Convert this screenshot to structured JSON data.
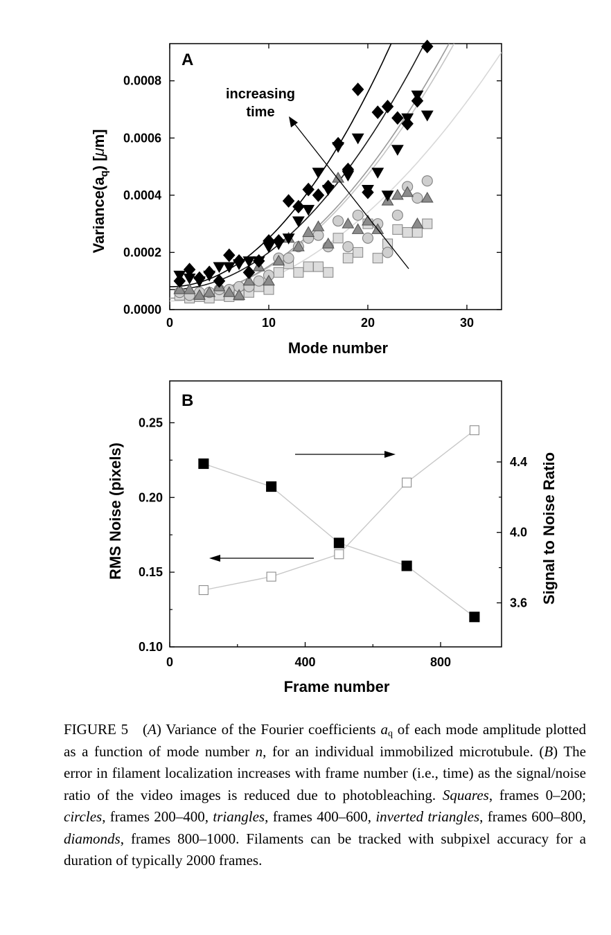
{
  "chart_data": [
    {
      "panel": "A",
      "type": "scatter",
      "xlabel": "Mode number",
      "ylabel": "Variance(a_q) [μm]",
      "ylabel_parts": {
        "pre": "Variance(a",
        "sub": "q",
        "post": ") [",
        "mu": "μ",
        "unit": "m]"
      },
      "xlim": [
        0,
        33.5
      ],
      "ylim": [
        0,
        0.00093
      ],
      "x_ticks": [
        0,
        10,
        20,
        30
      ],
      "x_tick_labels": [
        "0",
        "10",
        "20",
        "30"
      ],
      "y_ticks": [
        0,
        0.0002,
        0.0004,
        0.0006,
        0.0008
      ],
      "y_tick_labels": [
        "0.0000",
        "0.0002",
        "0.0004",
        "0.0006",
        "0.0008"
      ],
      "annotation": {
        "line1": "increasing",
        "line2": "time"
      },
      "series": [
        {
          "marker": "square",
          "fill": "#dcdcdc",
          "stroke": "#8c8c8c",
          "points": [
            [
              1,
              5e-05
            ],
            [
              2,
              4e-05
            ],
            [
              3,
              4.5e-05
            ],
            [
              4,
              4e-05
            ],
            [
              5,
              5e-05
            ],
            [
              6,
              4.5e-05
            ],
            [
              7,
              5e-05
            ],
            [
              8,
              6e-05
            ],
            [
              9,
              8e-05
            ],
            [
              10,
              7e-05
            ],
            [
              11,
              0.00013
            ],
            [
              12,
              0.00016
            ],
            [
              13,
              0.00013
            ],
            [
              14,
              0.00015
            ],
            [
              15,
              0.00015
            ],
            [
              16,
              0.00013
            ],
            [
              17,
              0.00025
            ],
            [
              18,
              0.00018
            ],
            [
              19,
              0.0002
            ],
            [
              20,
              0.0003
            ],
            [
              21,
              0.00018
            ],
            [
              22,
              0.00023
            ],
            [
              23,
              0.00028
            ],
            [
              24,
              0.00027
            ],
            [
              25,
              0.00027
            ],
            [
              26,
              0.0003
            ]
          ],
          "fit": {
            "a": 3e-05,
            "b": 7.75e-07,
            "p": 2
          },
          "fit_color": "#d8d8d8"
        },
        {
          "marker": "circle",
          "fill": "#cfcfcf",
          "stroke": "#808080",
          "points": [
            [
              1,
              6e-05
            ],
            [
              2,
              5e-05
            ],
            [
              3,
              6e-05
            ],
            [
              4,
              6e-05
            ],
            [
              5,
              7e-05
            ],
            [
              6,
              7e-05
            ],
            [
              7,
              8e-05
            ],
            [
              8,
              8e-05
            ],
            [
              9,
              0.0001
            ],
            [
              10,
              0.00012
            ],
            [
              11,
              0.00018
            ],
            [
              12,
              0.00018
            ],
            [
              13,
              0.00022
            ],
            [
              14,
              0.00025
            ],
            [
              15,
              0.00026
            ],
            [
              16,
              0.00022
            ],
            [
              17,
              0.00031
            ],
            [
              18,
              0.00022
            ],
            [
              19,
              0.00033
            ],
            [
              20,
              0.00025
            ],
            [
              21,
              0.0003
            ],
            [
              22,
              0.0002
            ],
            [
              23,
              0.00033
            ],
            [
              24,
              0.00043
            ],
            [
              25,
              0.00039
            ],
            [
              26,
              0.00045
            ]
          ],
          "fit": {
            "a": 4e-05,
            "b": 1.08e-06,
            "p": 2
          },
          "fit_color": "#c4c4c4"
        },
        {
          "marker": "triangle",
          "fill": "#8c8c8c",
          "stroke": "#555555",
          "points": [
            [
              1,
              7e-05
            ],
            [
              2,
              7e-05
            ],
            [
              3,
              5e-05
            ],
            [
              4,
              6e-05
            ],
            [
              5,
              8e-05
            ],
            [
              6,
              6e-05
            ],
            [
              7,
              5e-05
            ],
            [
              8,
              0.0001
            ],
            [
              9,
              0.00015
            ],
            [
              10,
              0.0001
            ],
            [
              11,
              0.00017
            ],
            [
              12,
              0.00025
            ],
            [
              13,
              0.00022
            ],
            [
              14,
              0.00027
            ],
            [
              15,
              0.00029
            ],
            [
              16,
              0.00023
            ],
            [
              17,
              0.00046
            ],
            [
              18,
              0.0003
            ],
            [
              19,
              0.00028
            ],
            [
              20,
              0.00031
            ],
            [
              21,
              0.00028
            ],
            [
              22,
              0.00038
            ],
            [
              23,
              0.0004
            ],
            [
              24,
              0.00041
            ],
            [
              25,
              0.0003
            ],
            [
              26,
              0.00039
            ]
          ],
          "fit": {
            "a": 4e-05,
            "b": 1.12e-06,
            "p": 2
          },
          "fit_color": "#9a9a9a"
        },
        {
          "marker": "triangle-down",
          "fill": "#000000",
          "stroke": "#000000",
          "points": [
            [
              1,
              0.00012
            ],
            [
              2,
              0.00011
            ],
            [
              3,
              0.0001
            ],
            [
              4,
              0.00012
            ],
            [
              5,
              0.00015
            ],
            [
              6,
              0.00015
            ],
            [
              7,
              0.00016
            ],
            [
              8,
              0.00017
            ],
            [
              9,
              0.00017
            ],
            [
              10,
              0.00022
            ],
            [
              11,
              0.00023
            ],
            [
              12,
              0.00025
            ],
            [
              13,
              0.00031
            ],
            [
              14,
              0.00035
            ],
            [
              15,
              0.00048
            ],
            [
              16,
              0.00042
            ],
            [
              17,
              0.00057
            ],
            [
              18,
              0.00047
            ],
            [
              19,
              0.0006
            ],
            [
              20,
              0.00042
            ],
            [
              21,
              0.00048
            ],
            [
              22,
              0.0004
            ],
            [
              23,
              0.00056
            ],
            [
              24,
              0.00067
            ],
            [
              25,
              0.00075
            ],
            [
              26,
              0.00068
            ]
          ],
          "fit": {
            "a": 7e-05,
            "b": 1.3e-06,
            "p": 2
          },
          "fit_color": "#1a1a1a"
        },
        {
          "marker": "diamond",
          "fill": "#000000",
          "stroke": "#000000",
          "points": [
            [
              1,
              0.0001
            ],
            [
              2,
              0.00014
            ],
            [
              3,
              0.00011
            ],
            [
              4,
              0.00013
            ],
            [
              5,
              0.0001
            ],
            [
              6,
              0.00019
            ],
            [
              7,
              0.00017
            ],
            [
              8,
              0.00013
            ],
            [
              9,
              0.00017
            ],
            [
              10,
              0.00024
            ],
            [
              11,
              0.00024
            ],
            [
              12,
              0.00038
            ],
            [
              13,
              0.00036
            ],
            [
              14,
              0.00042
            ],
            [
              15,
              0.0004
            ],
            [
              16,
              0.00043
            ],
            [
              17,
              0.00058
            ],
            [
              18,
              0.00049
            ],
            [
              19,
              0.00077
            ],
            [
              20,
              0.00041
            ],
            [
              21,
              0.00069
            ],
            [
              22,
              0.00071
            ],
            [
              23,
              0.00067
            ],
            [
              24,
              0.00065
            ],
            [
              25,
              0.00073
            ],
            [
              26,
              0.00092
            ]
          ],
          "fit": {
            "a": 8e-05,
            "b": 1.7e-06,
            "p": 2
          },
          "fit_color": "#000000"
        }
      ]
    },
    {
      "panel": "B",
      "type": "line",
      "xlabel": "Frame number",
      "ylabel": "RMS Noise (pixels)",
      "y2label": "Signal to Noise Ratio",
      "xlim": [
        0,
        980
      ],
      "ylim": [
        0.1,
        0.278
      ],
      "y2lim": [
        3.35,
        4.86
      ],
      "x_ticks": [
        0,
        400,
        800
      ],
      "x_tick_labels": [
        "0",
        "400",
        "800"
      ],
      "y_ticks": [
        0.1,
        0.15,
        0.2,
        0.25
      ],
      "y_tick_labels": [
        "0.10",
        "0.15",
        "0.20",
        "0.25"
      ],
      "y2_ticks": [
        3.6,
        4.0,
        4.4
      ],
      "y2_tick_labels": [
        "3.6",
        "4.0",
        "4.4"
      ],
      "series": [
        {
          "marker": "square-open",
          "axis": "left",
          "x": [
            100,
            300,
            500,
            700,
            900
          ],
          "y": [
            0.138,
            0.147,
            0.162,
            0.21,
            0.245
          ]
        },
        {
          "marker": "square-filled",
          "axis": "right",
          "x": [
            100,
            300,
            500,
            700,
            900
          ],
          "y": [
            4.39,
            4.26,
            3.94,
            3.81,
            3.52
          ]
        }
      ]
    }
  ],
  "caption": {
    "label": "FIGURE 5",
    "A_open": "(",
    "A_letter": "A",
    "A_close": ")",
    "s1": "Variance of the Fourier coefficients",
    "aq_base": "a",
    "aq_sub": "q",
    "s2": "of each mode amplitude plotted as a function of mode number",
    "n": "n",
    "s3": ", for an individual immobilized microtubule.",
    "B_open": "(",
    "B_letter": "B",
    "B_close": ")",
    "s4": "The error in filament localization increases with frame number (i.e., time) as the signal/noise ratio of the video images is reduced due to photobleaching.",
    "squares": "Squares",
    "s5": ", frames 0–200;",
    "circles": "circles",
    "s6": ", frames 200–400,",
    "triangles": "triangles",
    "s7": ", frames 400–600,",
    "inverted": "inverted triangles",
    "s8": ", frames 600–800,",
    "diamonds": "diamonds",
    "s9": ", frames 800–1000. Filaments can be tracked with subpixel accuracy for a duration of typically 2000 frames."
  }
}
